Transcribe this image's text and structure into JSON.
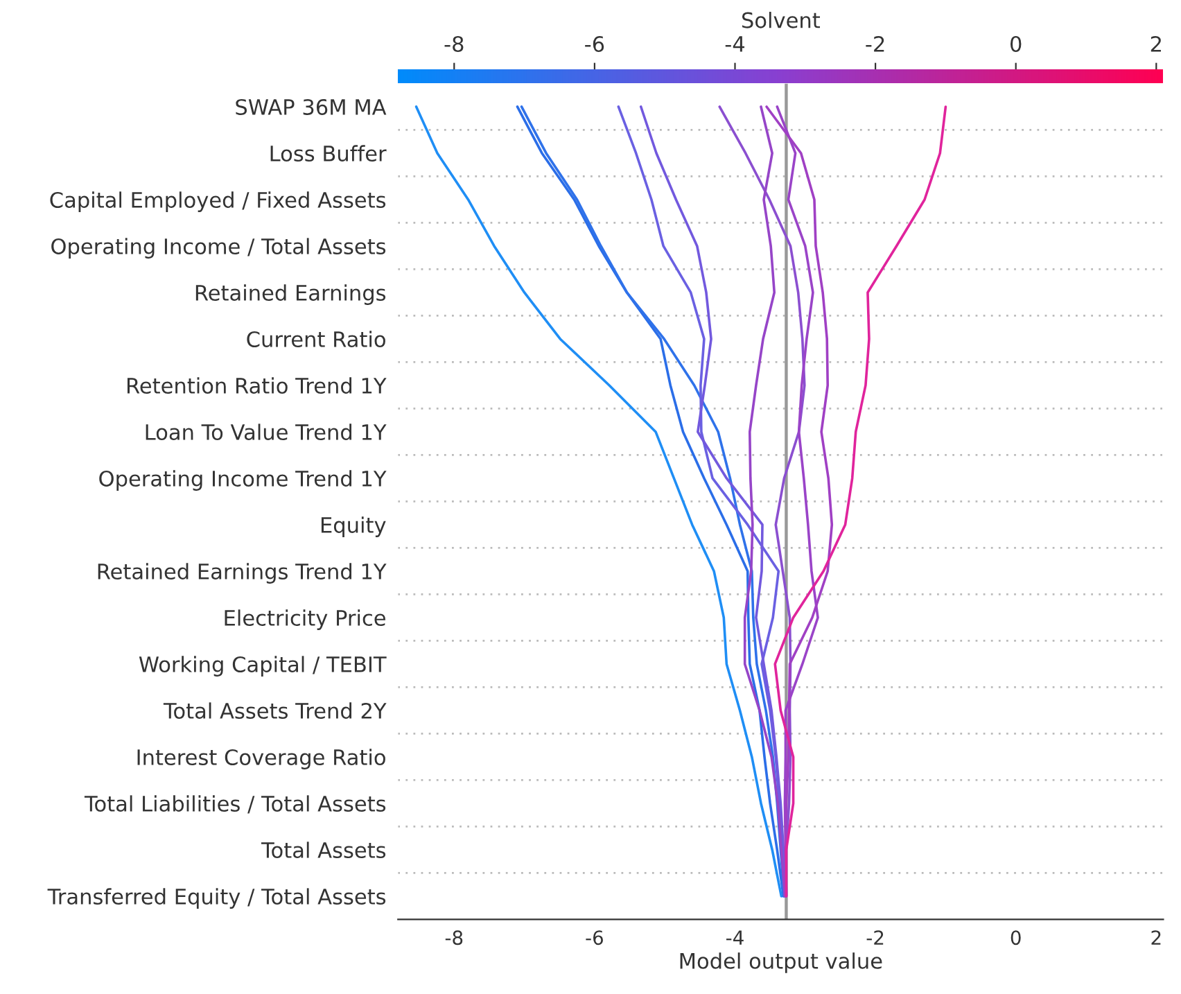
{
  "chart_data": {
    "type": "line",
    "orientation": "horizontal",
    "categories": [
      "SWAP 36M MA",
      "Loss Buffer",
      "Capital Employed / Fixed Assets",
      "Operating Income / Total Assets",
      "Retained Earnings",
      "Current Ratio",
      "Retention Ratio Trend 1Y",
      "Loan To Value Trend 1Y",
      "Operating Income Trend 1Y",
      "Equity",
      "Retained Earnings Trend 1Y",
      "Electricity Price",
      "Working Capital / TEBIT",
      "Total Assets Trend 2Y",
      "Interest Coverage Ratio",
      "Total Liabilities / Total Assets",
      "Total Assets",
      "Transferred Equity / Total Assets"
    ],
    "series": [
      {
        "color": "#1f8ef5",
        "values": [
          -8.54,
          -8.24,
          -7.8,
          -7.43,
          -7.0,
          -6.49,
          -5.79,
          -5.13,
          -4.87,
          -4.61,
          -4.3,
          -4.16,
          -4.12,
          -3.93,
          -3.76,
          -3.63,
          -3.47,
          -3.34
        ]
      },
      {
        "color": "#2b6ee8",
        "values": [
          -7.1,
          -6.75,
          -6.29,
          -5.94,
          -5.54,
          -5.06,
          -4.92,
          -4.74,
          -4.44,
          -4.12,
          -3.82,
          -3.81,
          -3.79,
          -3.65,
          -3.58,
          -3.5,
          -3.4,
          -3.31
        ]
      },
      {
        "color": "#2f72ea",
        "values": [
          -7.04,
          -6.69,
          -6.25,
          -5.91,
          -5.54,
          -5.01,
          -4.58,
          -4.24,
          -4.07,
          -3.93,
          -3.76,
          -3.74,
          -3.69,
          -3.56,
          -3.46,
          -3.4,
          -3.35,
          -3.3
        ]
      },
      {
        "color": "#6a60e2",
        "values": [
          -5.66,
          -5.41,
          -5.19,
          -5.02,
          -4.63,
          -4.44,
          -4.49,
          -4.48,
          -4.32,
          -3.82,
          -3.38,
          -3.46,
          -3.62,
          -3.5,
          -3.42,
          -3.37,
          -3.33,
          -3.29
        ]
      },
      {
        "color": "#7259de",
        "values": [
          -5.34,
          -5.12,
          -4.84,
          -4.54,
          -4.41,
          -4.34,
          -4.43,
          -4.53,
          -4.12,
          -3.61,
          -3.62,
          -3.7,
          -3.59,
          -3.48,
          -3.41,
          -3.35,
          -3.31,
          -3.28
        ]
      },
      {
        "color": "#8b4fd0",
        "values": [
          -4.22,
          -3.85,
          -3.51,
          -3.21,
          -3.1,
          -3.04,
          -3.01,
          -3.09,
          -3.3,
          -3.42,
          -3.32,
          -3.22,
          -3.21,
          -3.22,
          -3.21,
          -3.23,
          -3.27,
          -3.27
        ]
      },
      {
        "color": "#9645c8",
        "values": [
          -3.63,
          -3.47,
          -3.59,
          -3.49,
          -3.44,
          -3.6,
          -3.7,
          -3.79,
          -3.78,
          -3.75,
          -3.77,
          -3.86,
          -3.86,
          -3.65,
          -3.48,
          -3.39,
          -3.34,
          -3.29
        ]
      },
      {
        "color": "#9a44c8",
        "values": [
          -3.4,
          -3.14,
          -3.24,
          -3.0,
          -2.89,
          -2.98,
          -3.05,
          -3.09,
          -3.02,
          -2.96,
          -2.91,
          -2.82,
          -3.04,
          -3.28,
          -3.28,
          -3.29,
          -3.28,
          -3.27
        ]
      },
      {
        "color": "#a040c4",
        "values": [
          -3.55,
          -3.06,
          -2.87,
          -2.85,
          -2.75,
          -2.69,
          -2.68,
          -2.77,
          -2.67,
          -2.62,
          -2.68,
          -2.9,
          -3.22,
          -3.23,
          -3.24,
          -3.27,
          -3.28,
          -3.27
        ]
      },
      {
        "color": "#e0249c",
        "values": [
          -1.0,
          -1.08,
          -1.3,
          -1.7,
          -2.11,
          -2.09,
          -2.14,
          -2.28,
          -2.33,
          -2.43,
          -2.74,
          -3.17,
          -3.43,
          -3.35,
          -3.17,
          -3.17,
          -3.27,
          -3.27
        ]
      }
    ],
    "xlim": [
      -8.8,
      2.1
    ],
    "xticks": [
      -8,
      -6,
      -4,
      -2,
      0,
      2
    ],
    "xlabel": "Model output value",
    "clabel": "Solvent",
    "clim": [
      -8.8,
      2.1
    ],
    "cticks": [
      -8,
      -6,
      -4,
      -2,
      0,
      2
    ],
    "ref_lines": [
      {
        "axis": "x",
        "value": -3.27,
        "color": "#999999"
      }
    ],
    "grid": "y",
    "line_style": "solid",
    "marker": "none"
  }
}
